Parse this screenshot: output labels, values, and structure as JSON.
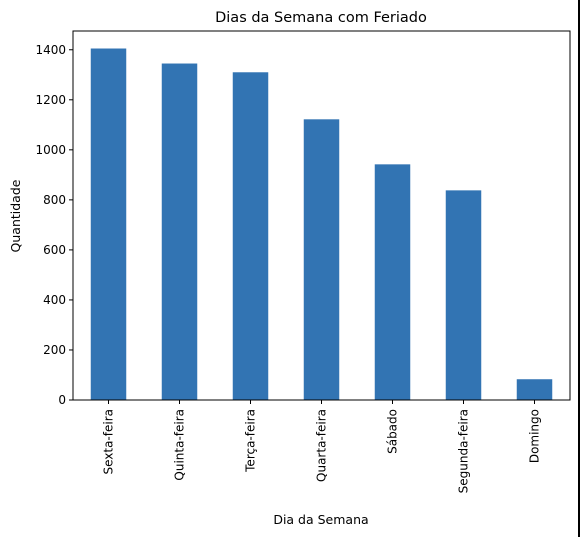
{
  "chart_data": {
    "type": "bar",
    "title": "Dias da Semana com Feriado",
    "xlabel": "Dia da Semana",
    "ylabel": "Quantidade",
    "categories": [
      "Sexta-feira",
      "Quinta-feira",
      "Terça-feira",
      "Quarta-feira",
      "Sábado",
      "Segunda-feira",
      "Domingo"
    ],
    "values": [
      1405,
      1345,
      1310,
      1122,
      942,
      838,
      83
    ],
    "ylim": [
      0,
      1475
    ],
    "yticks": [
      0,
      200,
      400,
      600,
      800,
      1000,
      1200,
      1400
    ],
    "bar_color": "#3274b3",
    "grid": false,
    "legend": "none"
  }
}
